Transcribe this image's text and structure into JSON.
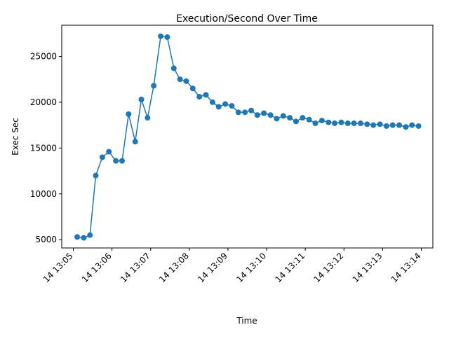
{
  "chart_data": {
    "type": "line",
    "title": "Execution/Second Over Time",
    "xlabel": "Time",
    "ylabel": "Exec Sec",
    "x_tick_labels": [
      "14 13:05",
      "14 13:06",
      "14 13:07",
      "14 13:08",
      "14 13:09",
      "14 13:10",
      "14 13:11",
      "14 13:12",
      "14 13:13",
      "14 13:14"
    ],
    "y_ticks": [
      5000,
      10000,
      15000,
      20000,
      25000
    ],
    "xlim_minutes": [
      4.7,
      14.3
    ],
    "ylim": [
      4100,
      28400
    ],
    "series": [
      {
        "color": "#1f77b4",
        "marker": "circle",
        "x_minutes": [
          5.1,
          5.27,
          5.43,
          5.58,
          5.75,
          5.92,
          6.1,
          6.26,
          6.43,
          6.6,
          6.76,
          6.92,
          7.08,
          7.26,
          7.43,
          7.6,
          7.76,
          7.92,
          8.09,
          8.26,
          8.43,
          8.6,
          8.76,
          8.93,
          9.1,
          9.27,
          9.44,
          9.6,
          9.76,
          9.93,
          10.1,
          10.26,
          10.43,
          10.6,
          10.76,
          10.93,
          11.1,
          11.26,
          11.43,
          11.6,
          11.76,
          11.93,
          12.1,
          12.26,
          12.43,
          12.6,
          12.76,
          12.93,
          13.1,
          13.26,
          13.43,
          13.6,
          13.76,
          13.93
        ],
        "values": [
          5300,
          5200,
          5500,
          12000,
          14000,
          14600,
          13600,
          13600,
          18700,
          15700,
          20300,
          18300,
          21800,
          27200,
          27100,
          23700,
          22500,
          22300,
          21500,
          20600,
          20800,
          20000,
          19500,
          19800,
          19600,
          18900,
          18900,
          19100,
          18600,
          18800,
          18600,
          18200,
          18500,
          18300,
          17900,
          18300,
          18100,
          17700,
          18000,
          17800,
          17700,
          17800,
          17700,
          17700,
          17700,
          17600,
          17500,
          17600,
          17400,
          17500,
          17500,
          17300,
          17500,
          17400
        ]
      }
    ]
  }
}
